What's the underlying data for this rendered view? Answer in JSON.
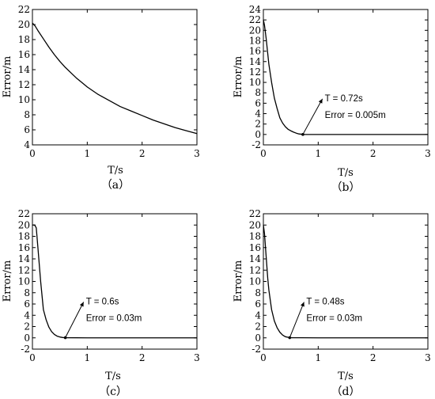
{
  "chart_data": [
    {
      "type": "line",
      "caption": "（a）",
      "xlabel": "T/s",
      "ylabel": "Error/m",
      "xlim": [
        0,
        3
      ],
      "ylim": [
        4,
        22
      ],
      "xticks": [
        0,
        1,
        2,
        3
      ],
      "yticks": [
        4,
        6,
        8,
        10,
        12,
        14,
        16,
        18,
        20,
        22
      ],
      "grid": false,
      "series": [
        {
          "x": [
            0,
            0.05,
            0.1,
            0.2,
            0.3,
            0.4,
            0.5,
            0.6,
            0.7,
            0.8,
            0.9,
            1.0,
            1.2,
            1.4,
            1.6,
            1.8,
            2.0,
            2.2,
            2.4,
            2.6,
            2.8,
            3.0
          ],
          "y": [
            20.2,
            19.8,
            19.2,
            18.1,
            17.0,
            16.0,
            15.1,
            14.3,
            13.6,
            12.9,
            12.3,
            11.7,
            10.7,
            9.9,
            9.1,
            8.5,
            7.9,
            7.3,
            6.8,
            6.3,
            5.9,
            5.5
          ]
        }
      ],
      "annotations": []
    },
    {
      "type": "line",
      "caption": "（b）",
      "xlabel": "T/s",
      "ylabel": "Error/m",
      "xlim": [
        0,
        3
      ],
      "ylim": [
        -2,
        24
      ],
      "xticks": [
        0,
        1,
        2,
        3
      ],
      "yticks": [
        -2,
        0,
        2,
        4,
        6,
        8,
        10,
        12,
        14,
        16,
        18,
        20,
        22,
        24
      ],
      "grid": false,
      "series": [
        {
          "x": [
            0,
            0.02,
            0.05,
            0.08,
            0.1,
            0.15,
            0.2,
            0.25,
            0.3,
            0.35,
            0.4,
            0.45,
            0.5,
            0.55,
            0.6,
            0.65,
            0.72,
            1.0,
            2.0,
            3.0
          ],
          "y": [
            22.0,
            21.0,
            18.5,
            15.5,
            13.5,
            10.0,
            7.0,
            5.0,
            3.2,
            2.2,
            1.5,
            1.0,
            0.7,
            0.45,
            0.25,
            0.1,
            0.005,
            0,
            0,
            0
          ]
        }
      ],
      "annotations": [
        {
          "x": 0.72,
          "y": 0.005,
          "line1": "T = 0.72s",
          "line2": "Error = 0.005m"
        }
      ]
    },
    {
      "type": "line",
      "caption": "（c）",
      "xlabel": "T/s",
      "ylabel": "Error/m",
      "xlim": [
        0,
        3
      ],
      "ylim": [
        -2,
        22
      ],
      "xticks": [
        0,
        1,
        2,
        3
      ],
      "yticks": [
        -2,
        0,
        2,
        4,
        6,
        8,
        10,
        12,
        14,
        16,
        18,
        20,
        22
      ],
      "grid": false,
      "series": [
        {
          "x": [
            0,
            0.04,
            0.07,
            0.1,
            0.15,
            0.2,
            0.25,
            0.3,
            0.35,
            0.4,
            0.45,
            0.5,
            0.55,
            0.6,
            1.0,
            2.0,
            3.0
          ],
          "y": [
            20.0,
            20.0,
            19.5,
            16.0,
            10.0,
            5.0,
            3.2,
            1.9,
            1.1,
            0.6,
            0.3,
            0.15,
            0.06,
            0.03,
            0,
            0,
            0
          ]
        }
      ],
      "annotations": [
        {
          "x": 0.6,
          "y": 0.03,
          "line1": "T = 0.6s",
          "line2": "Error = 0.03m"
        }
      ]
    },
    {
      "type": "line",
      "caption": "（d）",
      "xlabel": "T/s",
      "ylabel": "Error/m",
      "xlim": [
        0,
        3
      ],
      "ylim": [
        -2,
        22
      ],
      "xticks": [
        0,
        1,
        2,
        3
      ],
      "yticks": [
        -2,
        0,
        2,
        4,
        6,
        8,
        10,
        12,
        14,
        16,
        18,
        20,
        22
      ],
      "grid": false,
      "series": [
        {
          "x": [
            0,
            0.02,
            0.05,
            0.08,
            0.1,
            0.15,
            0.2,
            0.25,
            0.3,
            0.35,
            0.4,
            0.48,
            1.0,
            2.0,
            3.0
          ],
          "y": [
            20.0,
            18.5,
            14.5,
            10.5,
            8.5,
            5.0,
            3.0,
            1.8,
            1.0,
            0.5,
            0.2,
            0.03,
            0,
            0,
            0
          ]
        }
      ],
      "annotations": [
        {
          "x": 0.48,
          "y": 0.03,
          "line1": "T = 0.48s",
          "line2": "Error = 0.03m"
        }
      ]
    }
  ]
}
